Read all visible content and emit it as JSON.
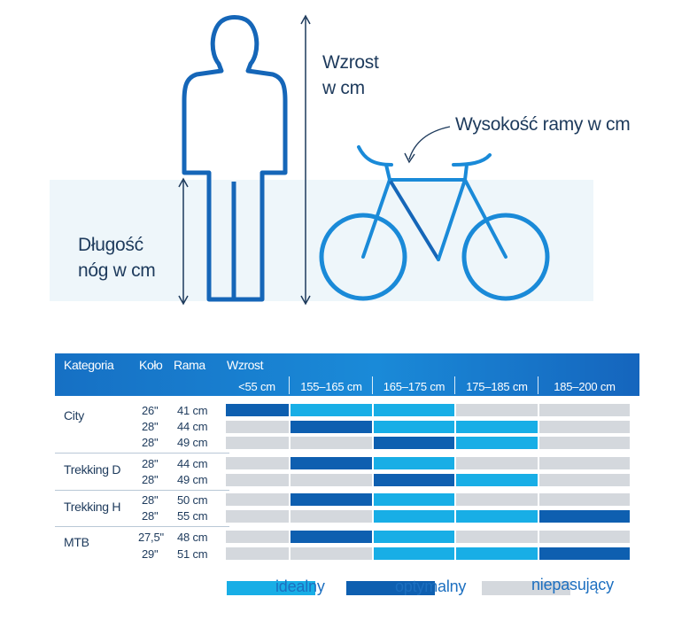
{
  "illustration": {
    "height_label": [
      "Wzrost",
      "w cm"
    ],
    "frame_label": "Wysokość ramy w cm",
    "leg_label": [
      "Długość",
      "nóg w cm"
    ]
  },
  "table": {
    "headers": {
      "category": "Kategoria",
      "wheel": "Koło",
      "frame": "Rama",
      "height": "Wzrost"
    },
    "ranges": [
      "<55 cm",
      "155–165 cm",
      "165–175 cm",
      "175–185 cm",
      "185–200 cm"
    ],
    "groups": [
      {
        "name": "City",
        "rows": [
          {
            "wheel": "26\"",
            "frame": "41 cm",
            "fit": [
              "optymalny",
              "idealny",
              "idealny",
              "niepasujący",
              "niepasujący"
            ]
          },
          {
            "wheel": "28\"",
            "frame": "44 cm",
            "fit": [
              "niepasujący",
              "optymalny",
              "idealny",
              "idealny",
              "niepasujący"
            ]
          },
          {
            "wheel": "28\"",
            "frame": "49 cm",
            "fit": [
              "niepasujący",
              "niepasujący",
              "optymalny",
              "idealny",
              "niepasujący"
            ]
          }
        ]
      },
      {
        "name": "Trekking D",
        "rows": [
          {
            "wheel": "28\"",
            "frame": "44 cm",
            "fit": [
              "niepasujący",
              "optymalny",
              "idealny",
              "niepasujący",
              "niepasujący"
            ]
          },
          {
            "wheel": "28\"",
            "frame": "49 cm",
            "fit": [
              "niepasujący",
              "niepasujący",
              "optymalny",
              "idealny",
              "niepasujący"
            ]
          }
        ]
      },
      {
        "name": "Trekking H",
        "rows": [
          {
            "wheel": "28\"",
            "frame": "50 cm",
            "fit": [
              "niepasujący",
              "optymalny",
              "idealny",
              "niepasujący",
              "niepasujący"
            ]
          },
          {
            "wheel": "28\"",
            "frame": "55 cm",
            "fit": [
              "niepasujący",
              "niepasujący",
              "idealny",
              "idealny",
              "optymalny"
            ]
          }
        ]
      },
      {
        "name": "MTB",
        "rows": [
          {
            "wheel": "27,5\"",
            "frame": "48 cm",
            "fit": [
              "niepasujący",
              "optymalny",
              "idealny",
              "niepasujący",
              "niepasujący"
            ]
          },
          {
            "wheel": "29\"",
            "frame": "51 cm",
            "fit": [
              "niepasujący",
              "niepasujący",
              "idealny",
              "idealny",
              "optymalny"
            ]
          }
        ]
      }
    ]
  },
  "legend": [
    {
      "label": "idealny",
      "color": "#18aee6"
    },
    {
      "label": "optymalny",
      "color": "#0e5fb0"
    },
    {
      "label": "niepasujący",
      "color": "#d4d8dd"
    }
  ],
  "colors": {
    "outline": "#1566b8",
    "accent": "#1a8ad8",
    "text": "#1d3a5c"
  }
}
